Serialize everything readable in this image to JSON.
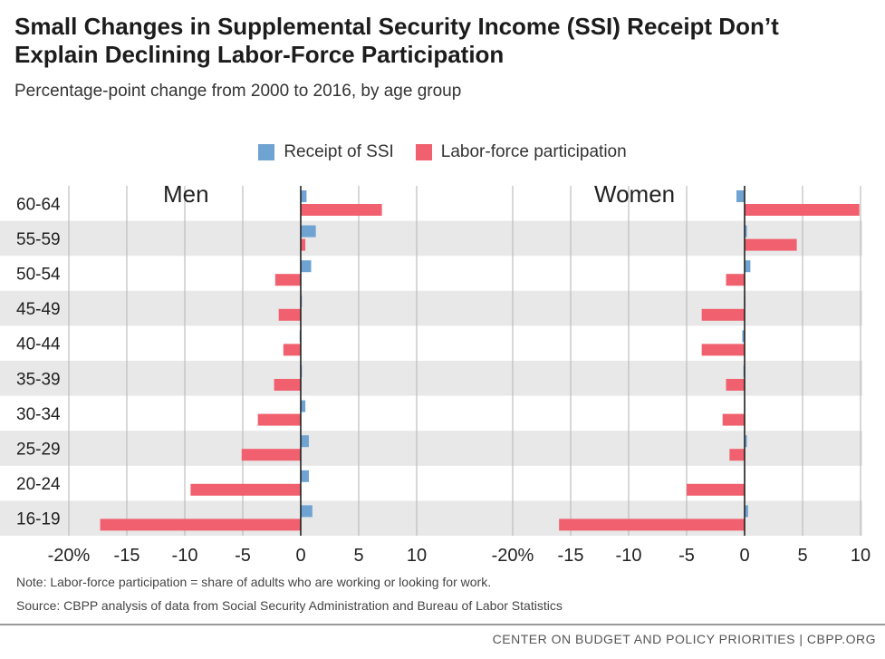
{
  "title": "Small Changes in Supplemental Security Income (SSI) Receipt Don’t Explain Declining Labor-Force Participation",
  "subtitle": "Percentage-point change from 2000 to 2016, by age group",
  "note": "Note: Labor-force participation = share of adults who are working or looking for work.",
  "source": "Source: CBPP analysis of data from Social Security Administration and Bureau of Labor Statistics",
  "footer": "CENTER ON BUDGET AND POLICY PRIORITIES | CBPP.ORG",
  "colors": {
    "ssi": "#6fa3d1",
    "lfp": "#f0606e",
    "band": "#e8e8e8",
    "grid": "#bdbdbd",
    "axis": "#222222"
  },
  "chart_data": [
    {
      "type": "bar",
      "orientation": "horizontal",
      "panel_label": "Men",
      "categories": [
        "60-64",
        "55-59",
        "50-54",
        "45-49",
        "40-44",
        "35-39",
        "30-34",
        "25-29",
        "20-24",
        "16-19"
      ],
      "series": [
        {
          "name": "Receipt of SSI",
          "values": [
            0.5,
            1.3,
            0.9,
            0.1,
            -0.1,
            0.1,
            0.4,
            0.7,
            0.7,
            1.0
          ]
        },
        {
          "name": "Labor-force participation",
          "values": [
            7.0,
            0.4,
            -2.2,
            -1.9,
            -1.5,
            -2.3,
            -3.7,
            -5.1,
            -9.5,
            -17.3
          ]
        }
      ],
      "xlim": [
        -20,
        10
      ],
      "xticks": [
        -20,
        -15,
        -10,
        -5,
        0,
        5,
        10
      ],
      "xtick_labels": [
        "-20%",
        "-15",
        "-10",
        "-5",
        "0",
        "5",
        "10"
      ],
      "grid": true
    },
    {
      "type": "bar",
      "orientation": "horizontal",
      "panel_label": "Women",
      "categories": [
        "60-64",
        "55-59",
        "50-54",
        "45-49",
        "40-44",
        "35-39",
        "30-34",
        "25-29",
        "20-24",
        "16-19"
      ],
      "series": [
        {
          "name": "Receipt of SSI",
          "values": [
            -0.7,
            0.2,
            0.5,
            0.0,
            -0.2,
            -0.1,
            0.0,
            0.2,
            0.0,
            0.3
          ]
        },
        {
          "name": "Labor-force participation",
          "values": [
            9.9,
            4.5,
            -1.6,
            -3.7,
            -3.7,
            -1.6,
            -1.9,
            -1.3,
            -5.0,
            -16.0
          ]
        }
      ],
      "xlim": [
        -20,
        10
      ],
      "xticks": [
        -20,
        -15,
        -10,
        -5,
        0,
        5,
        10
      ],
      "xtick_labels": [
        "-20%",
        "-15",
        "-10",
        "-5",
        "0",
        "5",
        "10"
      ],
      "grid": true
    }
  ]
}
